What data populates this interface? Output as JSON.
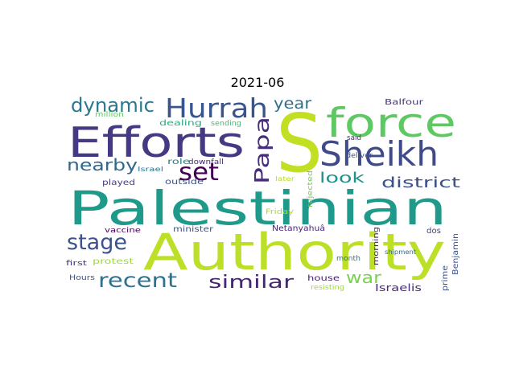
{
  "chart_data": {
    "type": "wordcloud",
    "title": "2021-06",
    "words": [
      {
        "text": "S",
        "color": "#c2df23"
      },
      {
        "text": "Palestinian",
        "color": "#1f9a8a"
      },
      {
        "text": "Authority",
        "color": "#bcdf27"
      },
      {
        "text": "Efforts",
        "color": "#443983"
      },
      {
        "text": "force",
        "color": "#5ec962"
      },
      {
        "text": "Sheikh",
        "color": "#3e4a89"
      },
      {
        "text": "Hurrah",
        "color": "#39568c"
      },
      {
        "text": "set",
        "color": "#440154"
      },
      {
        "text": "Papa",
        "color": "#472d7b"
      },
      {
        "text": "dynamic",
        "color": "#2a788e"
      },
      {
        "text": "nearby",
        "color": "#31688e"
      },
      {
        "text": "stage",
        "color": "#3b528b"
      },
      {
        "text": "recent",
        "color": "#2c728e"
      },
      {
        "text": "similar",
        "color": "#482475"
      },
      {
        "text": "war",
        "color": "#7ad151"
      },
      {
        "text": "year",
        "color": "#2d708e"
      },
      {
        "text": "look",
        "color": "#21918c"
      },
      {
        "text": "district",
        "color": "#3b528b"
      },
      {
        "text": "Balfour",
        "color": "#46337e"
      },
      {
        "text": "said",
        "color": "#472a7a"
      },
      {
        "text": "deliver",
        "color": "#3b528b"
      },
      {
        "text": "dealing",
        "color": "#27ad81"
      },
      {
        "text": "sending",
        "color": "#3fbc73"
      },
      {
        "text": "million",
        "color": "#5ec962"
      },
      {
        "text": "role",
        "color": "#26828e"
      },
      {
        "text": "downfall",
        "color": "#482878"
      },
      {
        "text": "Israel",
        "color": "#2a788e"
      },
      {
        "text": "played",
        "color": "#433e85"
      },
      {
        "text": "outside",
        "color": "#3b528b"
      },
      {
        "text": "later",
        "color": "#b5de2b"
      },
      {
        "text": "rejected",
        "color": "#73d056"
      },
      {
        "text": "Friday",
        "color": "#a8db34"
      },
      {
        "text": "vaccine",
        "color": "#440154"
      },
      {
        "text": "minister",
        "color": "#3b528b"
      },
      {
        "text": "Netanyahuâ",
        "color": "#482475"
      },
      {
        "text": "dos",
        "color": "#404688"
      },
      {
        "text": "protest",
        "color": "#a0da39"
      },
      {
        "text": "first",
        "color": "#46307e"
      },
      {
        "text": "month",
        "color": "#2a788e"
      },
      {
        "text": "morning",
        "color": "#482071"
      },
      {
        "text": "shipment",
        "color": "#31688e"
      },
      {
        "text": "Benjamin",
        "color": "#3b528b"
      },
      {
        "text": "prime",
        "color": "#3b528b"
      },
      {
        "text": "Hours",
        "color": "#3b528b"
      },
      {
        "text": "house",
        "color": "#482475"
      },
      {
        "text": "resisting",
        "color": "#a0da39"
      },
      {
        "text": "Israelis",
        "color": "#472d7b"
      }
    ]
  }
}
